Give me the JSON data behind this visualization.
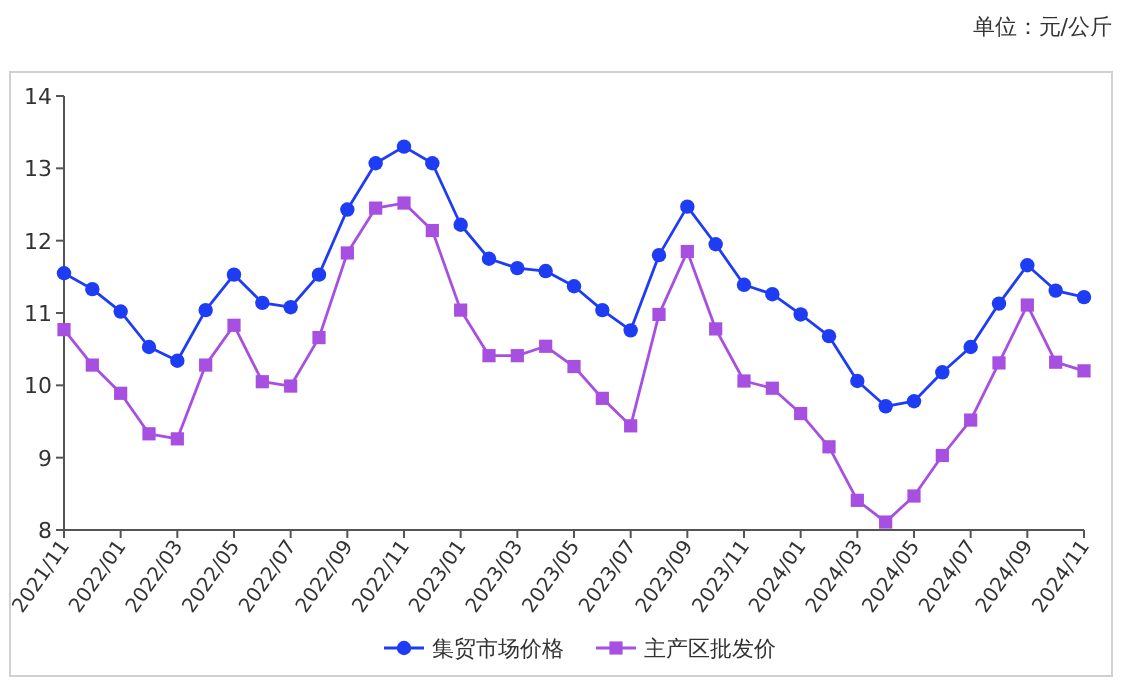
{
  "chart_data": {
    "type": "line",
    "categories": [
      "2021/11",
      null,
      "2022/01",
      null,
      "2022/03",
      null,
      "2022/05",
      null,
      "2022/07",
      null,
      "2022/09",
      null,
      "2022/11",
      null,
      "2023/01",
      null,
      "2023/03",
      null,
      "2023/05",
      null,
      "2023/07",
      null,
      "2023/09",
      null,
      "2023/11",
      null,
      "2024/01",
      null,
      "2024/03",
      null,
      "2024/05",
      null,
      "2024/07",
      null,
      "2024/09",
      null,
      "2024/11"
    ],
    "series": [
      {
        "name": "集贸市场价格",
        "color": "#1f3cf5",
        "marker": "circle",
        "values": [
          11.55,
          11.33,
          11.02,
          10.53,
          10.34,
          11.04,
          11.53,
          11.14,
          11.08,
          11.53,
          12.43,
          13.07,
          13.3,
          13.07,
          12.22,
          11.75,
          11.62,
          11.58,
          11.37,
          11.04,
          10.76,
          11.8,
          12.47,
          11.95,
          11.39,
          11.26,
          10.98,
          10.68,
          10.06,
          9.71,
          9.78,
          10.18,
          10.53,
          11.13,
          11.66,
          11.31,
          11.22
        ]
      },
      {
        "name": "主产区批发价",
        "color": "#a64fe0",
        "marker": "square",
        "values": [
          10.77,
          10.28,
          9.89,
          9.33,
          9.26,
          10.28,
          10.83,
          10.05,
          9.99,
          10.66,
          11.83,
          12.45,
          12.52,
          12.14,
          11.04,
          10.41,
          10.41,
          10.54,
          10.26,
          9.82,
          9.44,
          10.98,
          11.85,
          10.78,
          10.06,
          9.96,
          9.61,
          9.15,
          8.41,
          8.11,
          8.47,
          9.03,
          9.52,
          10.31,
          11.11,
          10.32,
          10.2
        ]
      }
    ],
    "ylim": [
      8,
      14
    ],
    "yticks": [
      8,
      9,
      10,
      11,
      12,
      13,
      14
    ],
    "grid": false,
    "legend": "bottom",
    "annotations": [
      "单位：元/公斤"
    ]
  }
}
